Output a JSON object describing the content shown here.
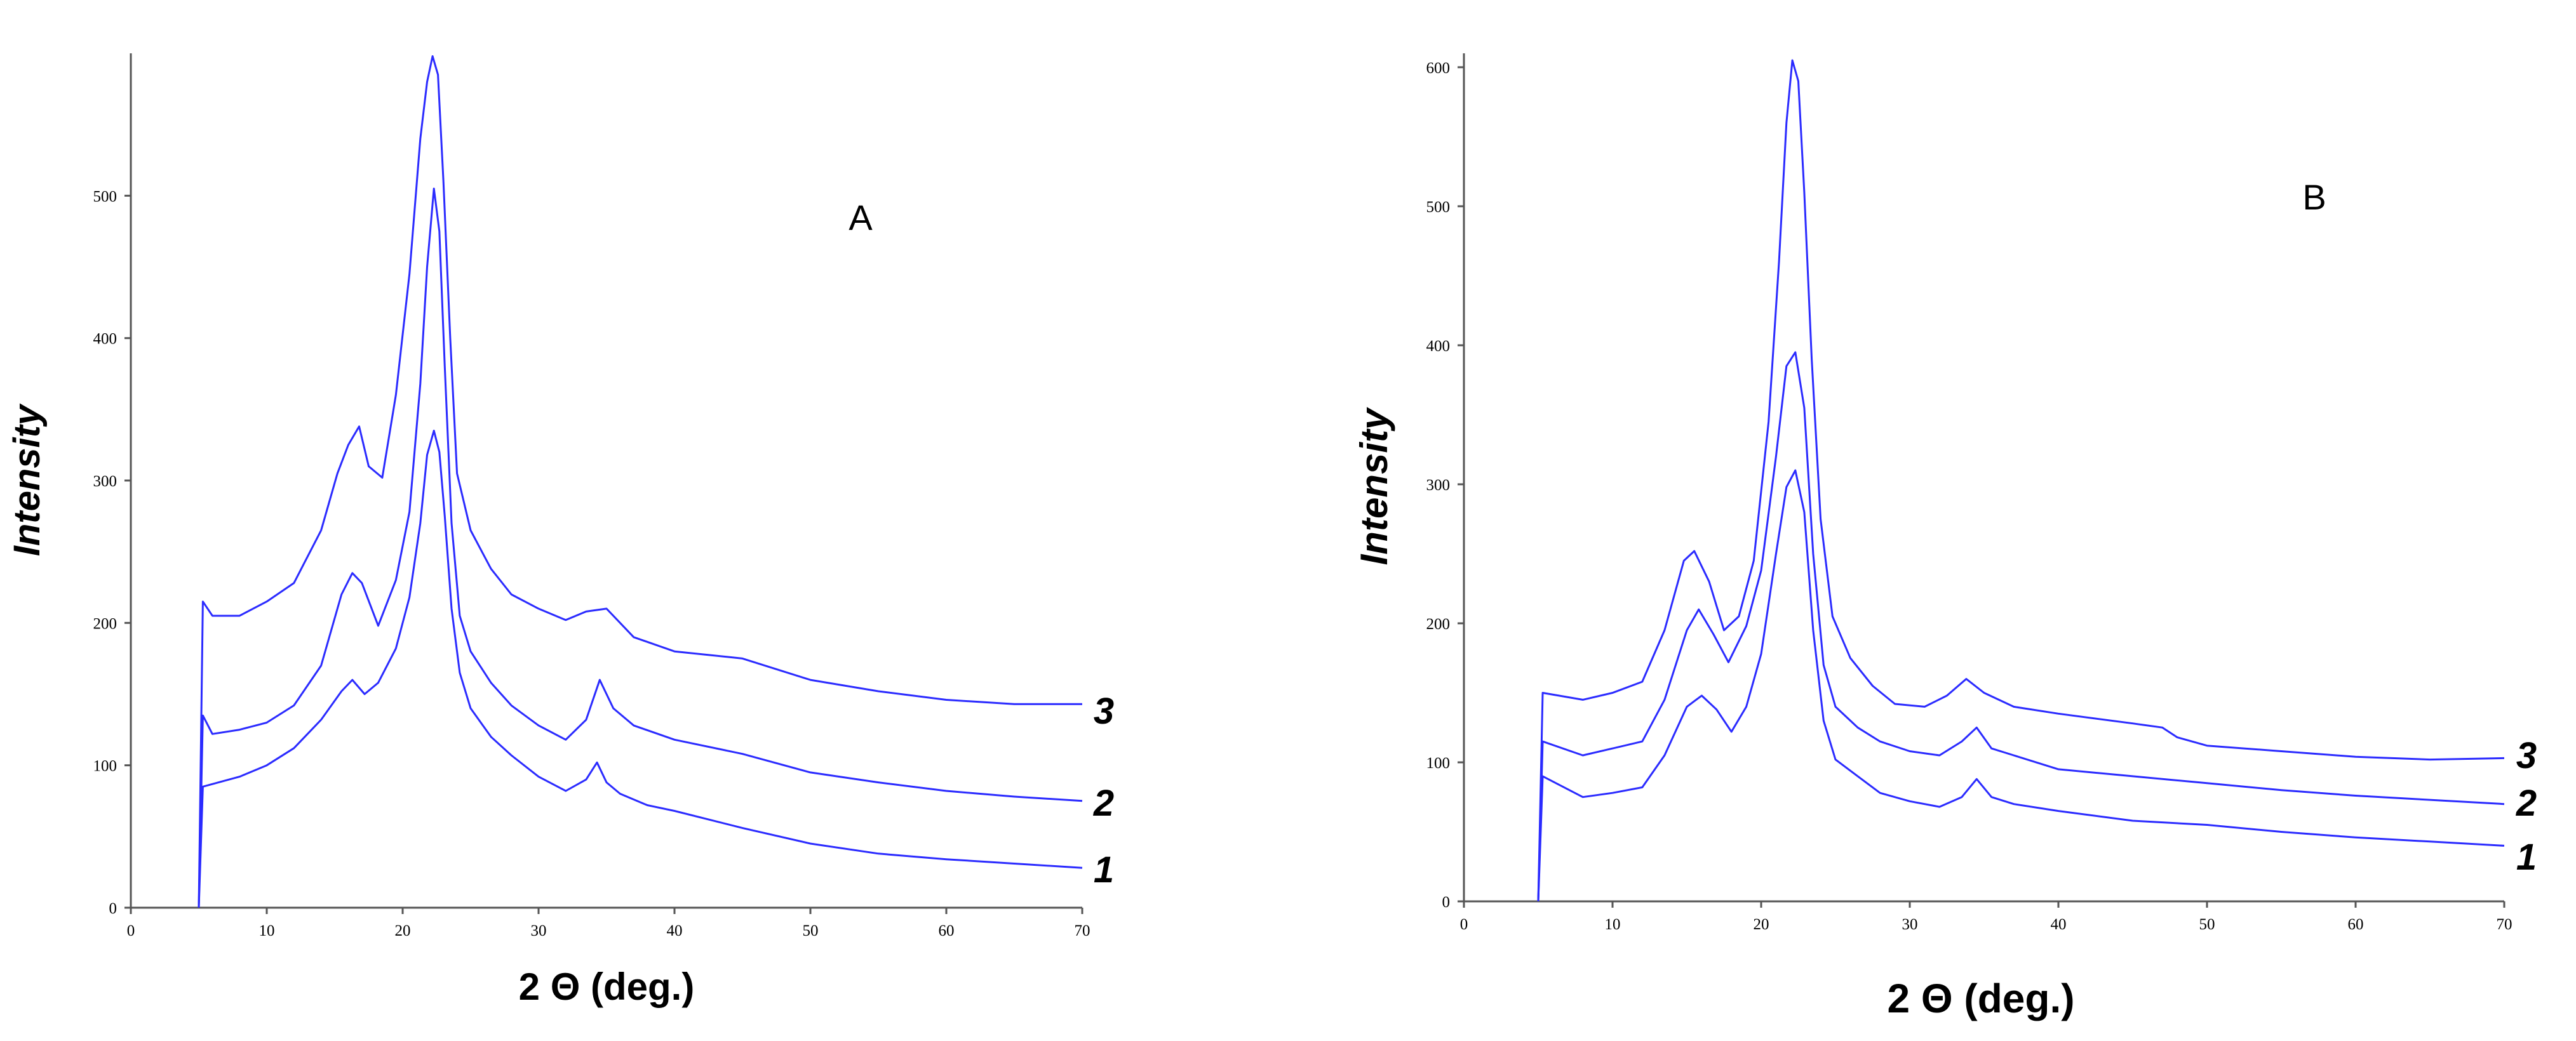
{
  "chart_data": [
    {
      "type": "line",
      "panel_label": "A",
      "xlabel": "2 Θ (deg.)",
      "ylabel": "Intensity",
      "xlim": [
        0,
        70
      ],
      "ylim": [
        0,
        600
      ],
      "xticks": [
        0,
        10,
        20,
        30,
        40,
        50,
        60,
        70
      ],
      "yticks": [
        0,
        100,
        200,
        300,
        400,
        500
      ],
      "grid": false,
      "legend": "inline labels at right end of each curve",
      "series": [
        {
          "name": "1",
          "x": [
            5,
            5.3,
            8,
            10,
            12,
            14,
            15.5,
            16.3,
            17.2,
            18.2,
            19.5,
            20.5,
            21.3,
            21.8,
            22.3,
            22.7,
            23.1,
            23.6,
            24.2,
            25,
            26.5,
            28,
            30,
            32,
            33.5,
            34.3,
            35,
            36,
            38,
            40,
            45,
            50,
            55,
            60,
            65,
            70
          ],
          "y": [
            0,
            85,
            92,
            100,
            112,
            132,
            152,
            160,
            150,
            158,
            182,
            218,
            270,
            318,
            335,
            320,
            275,
            210,
            165,
            140,
            120,
            107,
            92,
            82,
            90,
            102,
            88,
            80,
            72,
            68,
            56,
            45,
            38,
            34,
            31,
            28
          ]
        },
        {
          "name": "2",
          "x": [
            5,
            5.3,
            6,
            8,
            10,
            12,
            14,
            15.5,
            16.3,
            17,
            18.2,
            19.5,
            20.5,
            21.3,
            21.8,
            22.3,
            22.7,
            23.1,
            23.6,
            24.2,
            25,
            26.5,
            28,
            30,
            32,
            33.5,
            34.5,
            35.5,
            37,
            40,
            45,
            50,
            55,
            60,
            65,
            70
          ],
          "y": [
            0,
            135,
            122,
            125,
            130,
            142,
            170,
            220,
            235,
            228,
            198,
            230,
            278,
            368,
            450,
            505,
            475,
            380,
            270,
            205,
            180,
            158,
            142,
            128,
            118,
            132,
            160,
            140,
            128,
            118,
            108,
            95,
            88,
            82,
            78,
            75
          ]
        },
        {
          "name": "3",
          "x": [
            5,
            5.3,
            6,
            8,
            10,
            12,
            14,
            15.2,
            16,
            16.8,
            17.5,
            18.5,
            19.5,
            20.5,
            21.3,
            21.8,
            22.2,
            22.6,
            23,
            23.5,
            24,
            25,
            26.5,
            28,
            30,
            32,
            33.5,
            35,
            37,
            40,
            45,
            50,
            55,
            60,
            65,
            70
          ],
          "y": [
            0,
            215,
            205,
            205,
            215,
            228,
            265,
            305,
            325,
            338,
            310,
            302,
            360,
            445,
            540,
            580,
            598,
            585,
            510,
            400,
            305,
            265,
            238,
            220,
            210,
            202,
            208,
            210,
            190,
            180,
            175,
            160,
            152,
            146,
            143,
            143
          ]
        }
      ]
    },
    {
      "type": "line",
      "panel_label": "B",
      "xlabel": "2 Θ (deg.)",
      "ylabel": "Intensity",
      "xlim": [
        0,
        70
      ],
      "ylim": [
        0,
        610
      ],
      "xticks": [
        0,
        10,
        20,
        30,
        40,
        50,
        60,
        70
      ],
      "yticks": [
        0,
        100,
        200,
        300,
        400,
        500,
        600
      ],
      "grid": false,
      "legend": "inline labels at right end of each curve",
      "series": [
        {
          "name": "1",
          "x": [
            5,
            5.3,
            8,
            10,
            12,
            13.5,
            15,
            16,
            17,
            18,
            19,
            20,
            21,
            21.7,
            22.3,
            22.9,
            23.5,
            24.2,
            25,
            26.5,
            28,
            30,
            32,
            33.5,
            34.5,
            35.5,
            37,
            40,
            45,
            50,
            55,
            60,
            65,
            70
          ],
          "y": [
            0,
            90,
            75,
            78,
            82,
            105,
            140,
            148,
            138,
            122,
            140,
            178,
            250,
            298,
            310,
            280,
            195,
            130,
            102,
            90,
            78,
            72,
            68,
            75,
            88,
            75,
            70,
            65,
            58,
            55,
            50,
            46,
            43,
            40
          ]
        },
        {
          "name": "2",
          "x": [
            5,
            5.3,
            8,
            10,
            12,
            13.5,
            15,
            15.8,
            16.8,
            17.8,
            19,
            20,
            21,
            21.7,
            22.3,
            22.9,
            23.5,
            24.2,
            25,
            26.5,
            28,
            30,
            32,
            33.5,
            34.5,
            35.5,
            37,
            40,
            45,
            50,
            55,
            60,
            65,
            70
          ],
          "y": [
            0,
            115,
            105,
            110,
            115,
            145,
            195,
            210,
            192,
            172,
            198,
            238,
            320,
            385,
            395,
            355,
            250,
            170,
            140,
            125,
            115,
            108,
            105,
            115,
            125,
            110,
            105,
            95,
            90,
            85,
            80,
            76,
            73,
            70
          ]
        },
        {
          "name": "3",
          "x": [
            5,
            5.3,
            8,
            10,
            12,
            13.5,
            14.8,
            15.5,
            16.5,
            17.5,
            18.5,
            19.5,
            20.5,
            21.2,
            21.7,
            22.1,
            22.5,
            22.9,
            23.4,
            24,
            24.8,
            26,
            27.5,
            29,
            31,
            32.5,
            33.8,
            35,
            37,
            40,
            45,
            47,
            48,
            50,
            55,
            60,
            65,
            70
          ],
          "y": [
            0,
            150,
            145,
            150,
            158,
            195,
            245,
            252,
            230,
            195,
            205,
            245,
            345,
            460,
            560,
            605,
            590,
            510,
            390,
            275,
            205,
            175,
            155,
            142,
            140,
            148,
            160,
            150,
            140,
            135,
            128,
            125,
            118,
            112,
            108,
            104,
            102,
            103
          ]
        }
      ]
    }
  ]
}
